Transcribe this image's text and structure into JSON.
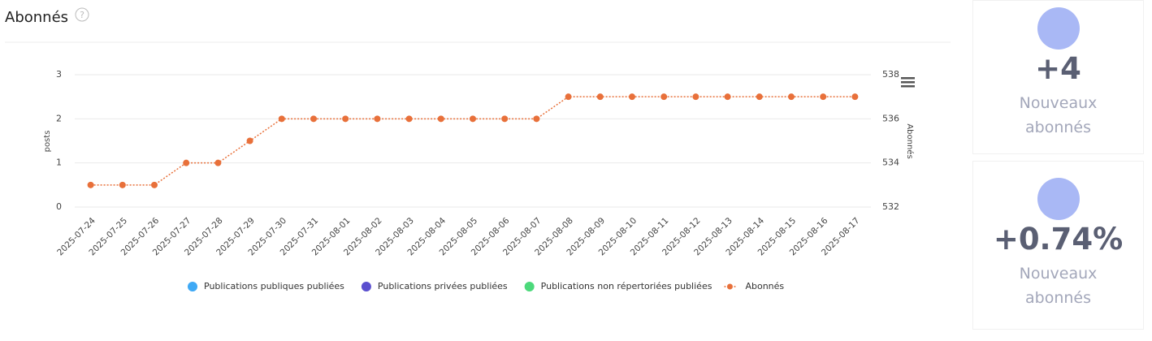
{
  "chart_data": {
    "type": "line",
    "title": "Abonnés",
    "y_label": "posts",
    "y2_label": "Abonnés",
    "categories": [
      "2025-07-24",
      "2025-07-25",
      "2025-07-26",
      "2025-07-27",
      "2025-07-28",
      "2025-07-29",
      "2025-07-30",
      "2025-07-31",
      "2025-08-01",
      "2025-08-02",
      "2025-08-03",
      "2025-08-04",
      "2025-08-05",
      "2025-08-06",
      "2025-08-07",
      "2025-08-08",
      "2025-08-09",
      "2025-08-10",
      "2025-08-11",
      "2025-08-12",
      "2025-08-13",
      "2025-08-14",
      "2025-08-15",
      "2025-08-16",
      "2025-08-17"
    ],
    "ylim": [
      0,
      3
    ],
    "yticks": [
      0,
      1,
      2,
      3
    ],
    "y2lim": [
      532,
      538
    ],
    "y2ticks": [
      532,
      534,
      536,
      538
    ],
    "grid": true,
    "series": [
      {
        "name": "Publications publiques publiées",
        "type": "bar",
        "color": "#3fa9f5",
        "values": [
          0,
          0,
          0,
          0,
          0,
          0,
          0,
          0,
          0,
          0,
          0,
          0,
          0,
          0,
          0,
          0,
          0,
          0,
          0,
          0,
          0,
          0,
          0,
          0,
          0
        ]
      },
      {
        "name": "Publications privées publiées",
        "type": "bar",
        "color": "#5b4fcf",
        "values": [
          0,
          0,
          0,
          0,
          0,
          0,
          0,
          0,
          0,
          0,
          0,
          0,
          0,
          0,
          0,
          0,
          0,
          0,
          0,
          0,
          0,
          0,
          0,
          0,
          0
        ]
      },
      {
        "name": "Publications non répertoriées publiées",
        "type": "bar",
        "color": "#4cd97b",
        "values": [
          0,
          0,
          0,
          0,
          0,
          0,
          0,
          0,
          0,
          0,
          0,
          0,
          0,
          0,
          0,
          0,
          0,
          0,
          0,
          0,
          0,
          0,
          0,
          0,
          0
        ]
      },
      {
        "name": "Abonnés",
        "type": "line",
        "axis": "y2",
        "color": "#e8703a",
        "values": [
          533,
          533,
          533,
          534,
          534,
          535,
          536,
          536,
          536,
          536,
          536,
          536,
          536,
          536,
          536,
          537,
          537,
          537,
          537,
          537,
          537,
          537,
          537,
          537,
          537
        ]
      }
    ]
  },
  "cards": [
    {
      "value": "+4",
      "label": "Nouveaux abonnés"
    },
    {
      "value": "+0.74%",
      "label": "Nouveaux abonnés"
    }
  ]
}
